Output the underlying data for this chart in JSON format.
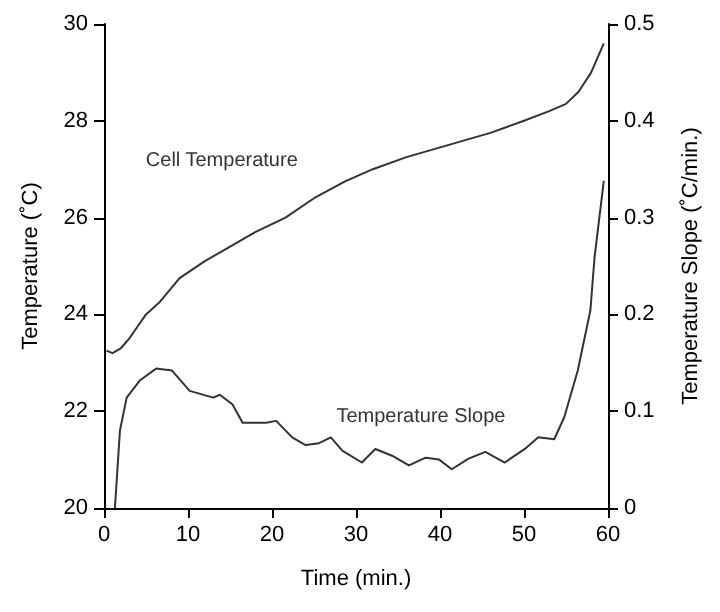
{
  "chart_data": {
    "type": "line",
    "xlabel": "Time (min.)",
    "ylabel": "Temperature (˚C)",
    "y2label": "Temperature Slope (˚C/min.)",
    "xlim": [
      0,
      60
    ],
    "xticks": [
      0,
      10,
      20,
      30,
      40,
      50,
      60
    ],
    "ylim": [
      20,
      30
    ],
    "yticks": [
      20,
      22,
      24,
      26,
      28,
      30
    ],
    "y2lim": [
      0,
      0.5
    ],
    "y2ticks": [
      0,
      0.1,
      0.2,
      0.3,
      0.4,
      0.5
    ],
    "grid": false,
    "legend": false,
    "marker": "none",
    "line_style": "solid",
    "series": [
      {
        "name": "Cell Temperature",
        "color": "#333333",
        "x": [
          0.3,
          1,
          2,
          3,
          4,
          5,
          6.6,
          9,
          12,
          14.5,
          18,
          21.6,
          25,
          28.7,
          32,
          36,
          39,
          43,
          46,
          50,
          53,
          55,
          56.5,
          58,
          59.5
        ],
        "values": [
          23.25,
          23.2,
          23.3,
          23.5,
          23.75,
          24.0,
          24.25,
          24.75,
          25.1,
          25.35,
          25.7,
          26.0,
          26.4,
          26.75,
          27.0,
          27.25,
          27.4,
          27.6,
          27.75,
          28.0,
          28.2,
          28.35,
          28.6,
          29.0,
          29.6
        ]
      },
      {
        "name": "Temperature Slope",
        "color": "#333333",
        "axis": "y2",
        "x": [
          1.3,
          1.9,
          2.7,
          4.3,
          6.2,
          8.1,
          10.2,
          13,
          13.8,
          15.3,
          16.5,
          19.3,
          20.5,
          22.4,
          24,
          25.6,
          27,
          28.4,
          30.7,
          32.3,
          34.3,
          36.3,
          38.3,
          39.9,
          41.4,
          43.4,
          45.4,
          47.7,
          50.1,
          51.7,
          53.6,
          54.8,
          56.4,
          57.9,
          58.4,
          59.5
        ],
        "values": [
          0.0,
          0.08,
          0.114,
          0.132,
          0.144,
          0.142,
          0.121,
          0.114,
          0.117,
          0.107,
          0.088,
          0.088,
          0.09,
          0.073,
          0.065,
          0.067,
          0.073,
          0.059,
          0.047,
          0.061,
          0.054,
          0.044,
          0.052,
          0.05,
          0.04,
          0.051,
          0.058,
          0.047,
          0.061,
          0.073,
          0.071,
          0.094,
          0.142,
          0.204,
          0.259,
          0.338
        ]
      }
    ]
  }
}
